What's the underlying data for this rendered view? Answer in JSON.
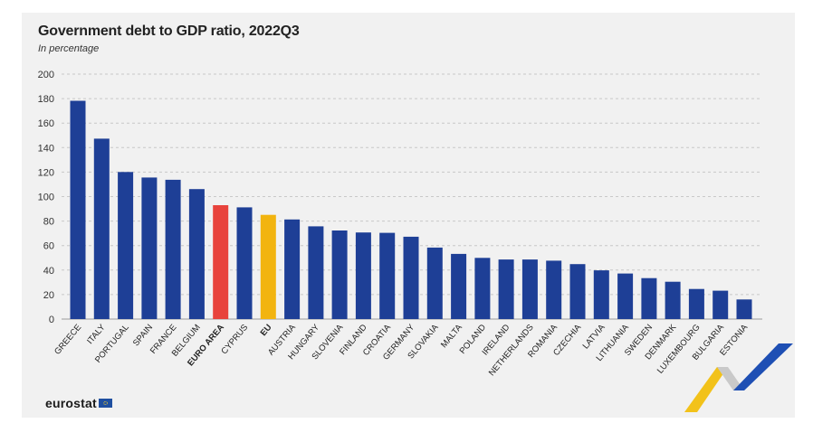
{
  "chart_data": {
    "type": "bar",
    "title": "Government debt to GDP ratio, 2022Q3",
    "subtitle": "In percentage",
    "xlabel": "",
    "ylabel": "",
    "ylim": [
      0,
      200
    ],
    "yticks": [
      0,
      20,
      40,
      60,
      80,
      100,
      120,
      140,
      160,
      180,
      200
    ],
    "grid": true,
    "categories": [
      "GREECE",
      "ITALY",
      "PORTUGAL",
      "SPAIN",
      "FRANCE",
      "BELGIUM",
      "EURO AREA",
      "CYPRUS",
      "EU",
      "AUSTRIA",
      "HUNGARY",
      "SLOVENIA",
      "FINLAND",
      "CROATIA",
      "GERMANY",
      "SLOVAKIA",
      "MALTA",
      "POLAND",
      "IRELAND",
      "NETHERLANDS",
      "ROMANIA",
      "CZECHIA",
      "LATVIA",
      "LITHUANIA",
      "SWEDEN",
      "DENMARK",
      "LUXEMBOURG",
      "BULGARIA",
      "ESTONIA"
    ],
    "values": [
      178.2,
      147.3,
      120.1,
      115.6,
      113.7,
      106.1,
      93.0,
      91.2,
      85.1,
      81.3,
      75.7,
      72.3,
      70.7,
      70.4,
      67.2,
      58.4,
      53.2,
      50.0,
      48.6,
      48.6,
      47.7,
      44.9,
      39.8,
      37.2,
      33.4,
      30.5,
      24.6,
      23.2,
      16.0
    ],
    "bold_categories": [
      "EURO AREA",
      "EU"
    ],
    "colors": {
      "default": "#1e3f96",
      "EURO AREA": "#e8433c",
      "EU": "#f2b40f",
      "grid": "#c8c8c8",
      "background": "#f1f1f1"
    }
  },
  "branding": {
    "logo_text": "eurostat"
  }
}
